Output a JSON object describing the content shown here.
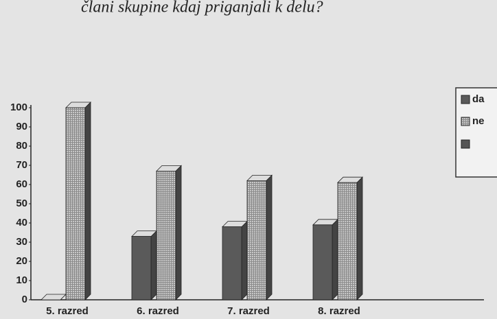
{
  "chart_data": {
    "type": "bar",
    "title": "člani skupine kdaj priganjali k delu?",
    "categories": [
      "5. razred",
      "6. razred",
      "7. razred",
      "8. razred"
    ],
    "series": [
      {
        "name": "da",
        "color": "#5a5a5a",
        "values": [
          0,
          33,
          38,
          39
        ]
      },
      {
        "name": "ne",
        "color": "#b4b4b4",
        "values": [
          100,
          67,
          62,
          61
        ]
      }
    ],
    "ylim": [
      0,
      100
    ],
    "yticks": [
      0,
      10,
      20,
      30,
      40,
      50,
      60,
      70,
      80,
      90,
      100
    ],
    "legend": "right"
  }
}
